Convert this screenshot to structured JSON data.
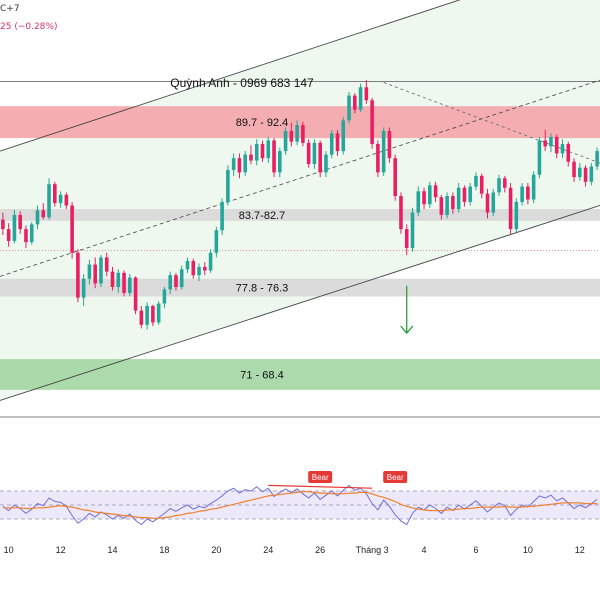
{
  "header": {
    "line1": "C+7",
    "line2": "25 (−0.28%)"
  },
  "colors": {
    "up": "#26a69a",
    "down": "#e91e63",
    "channel_fill": "#eaf6ea",
    "resistance_zone": "#f4a0a6",
    "support_zone_grey": "#d6d6d6",
    "target_zone": "#9ed49e",
    "rsi_line": "#6f6fd8",
    "rsi_ma": "#f08030",
    "bear_label": "#e53935",
    "arrow": "#2e9e3e"
  },
  "chart_data": {
    "type": "candlestick",
    "title": "",
    "annotation": "Quỳnh Anh - 0969 683 147",
    "y_range": [
      65,
      98
    ],
    "x_axis": {
      "ticks": [
        {
          "label": "10",
          "index": 1
        },
        {
          "label": "12",
          "index": 10
        },
        {
          "label": "14",
          "index": 19
        },
        {
          "label": "18",
          "index": 28
        },
        {
          "label": "20",
          "index": 37
        },
        {
          "label": "24",
          "index": 46
        },
        {
          "label": "26",
          "index": 55
        },
        {
          "label": "Tháng 3",
          "index": 64
        },
        {
          "label": "4",
          "index": 73
        },
        {
          "label": "6",
          "index": 82
        },
        {
          "label": "10",
          "index": 91
        },
        {
          "label": "12",
          "index": 100
        }
      ],
      "count": 104
    },
    "zones": [
      {
        "label": "89.7 - 92.4",
        "from": 89.7,
        "to": 92.4,
        "color_key": "resistance_zone"
      },
      {
        "label": "83.7-82.7",
        "from": 82.7,
        "to": 83.7,
        "color_key": "support_zone_grey"
      },
      {
        "label": "77.8 - 76.3",
        "from": 76.3,
        "to": 77.8,
        "color_key": "support_zone_grey"
      },
      {
        "label": "71 - 68.4",
        "from": 68.4,
        "to": 71,
        "color_key": "target_zone"
      }
    ],
    "horizontal_lines": [
      94.5,
      66.1
    ],
    "dotted_price": 80.2,
    "channel": {
      "lower": [
        [
          0,
          67.5
        ],
        [
          104,
          84.0
        ]
      ],
      "upper": [
        [
          0,
          88.6
        ],
        [
          104,
          105.3
        ]
      ],
      "mid": [
        [
          0,
          78.0
        ],
        [
          104,
          94.6
        ]
      ]
    },
    "trend_dashed": [
      [
        66,
        94.4
      ],
      [
        104,
        87.5
      ]
    ],
    "arrow_down": {
      "index": 70,
      "from": 77.2,
      "to": 73.2
    },
    "candles": [
      [
        82.8,
        83.4,
        81.5,
        82.0
      ],
      [
        82.0,
        82.5,
        80.5,
        81.0
      ],
      [
        81.0,
        83.6,
        80.8,
        83.2
      ],
      [
        83.2,
        83.5,
        81.6,
        82.0
      ],
      [
        82.0,
        82.3,
        80.4,
        80.9
      ],
      [
        80.9,
        82.6,
        80.7,
        82.4
      ],
      [
        82.4,
        84.0,
        82.0,
        83.6
      ],
      [
        83.6,
        84.2,
        82.8,
        83.0
      ],
      [
        83.0,
        86.3,
        82.8,
        85.8
      ],
      [
        85.8,
        86.0,
        83.9,
        84.2
      ],
      [
        84.2,
        85.2,
        83.8,
        84.9
      ],
      [
        84.9,
        85.1,
        83.7,
        84.0
      ],
      [
        84.0,
        84.3,
        79.5,
        80.0
      ],
      [
        80.0,
        80.3,
        75.8,
        76.2
      ],
      [
        76.2,
        78.2,
        75.5,
        77.8
      ],
      [
        77.8,
        79.4,
        77.3,
        79.0
      ],
      [
        79.0,
        79.6,
        77.0,
        77.4
      ],
      [
        77.4,
        79.8,
        77.1,
        79.6
      ],
      [
        79.6,
        80.0,
        78.0,
        78.4
      ],
      [
        78.4,
        78.8,
        76.8,
        77.1
      ],
      [
        77.1,
        78.6,
        76.6,
        78.3
      ],
      [
        78.3,
        78.5,
        76.3,
        76.6
      ],
      [
        76.6,
        78.2,
        76.3,
        77.9
      ],
      [
        77.9,
        78.0,
        74.8,
        75.1
      ],
      [
        75.1,
        75.5,
        73.6,
        73.9
      ],
      [
        73.9,
        75.8,
        73.5,
        75.5
      ],
      [
        75.5,
        75.6,
        73.8,
        74.1
      ],
      [
        74.1,
        75.9,
        73.9,
        75.7
      ],
      [
        75.7,
        77.1,
        75.3,
        76.9
      ],
      [
        76.9,
        78.4,
        76.5,
        78.1
      ],
      [
        78.1,
        78.3,
        76.8,
        77.1
      ],
      [
        77.1,
        78.9,
        76.9,
        78.6
      ],
      [
        78.6,
        79.6,
        78.3,
        79.3
      ],
      [
        79.3,
        79.5,
        77.8,
        78.1
      ],
      [
        78.1,
        79.1,
        77.6,
        78.8
      ],
      [
        78.8,
        79.2,
        78.1,
        78.5
      ],
      [
        78.5,
        80.3,
        78.3,
        80.0
      ],
      [
        80.0,
        82.2,
        79.6,
        81.9
      ],
      [
        81.9,
        84.6,
        81.5,
        84.3
      ],
      [
        84.3,
        87.4,
        84.0,
        87.0
      ],
      [
        87.0,
        88.4,
        86.5,
        88.0
      ],
      [
        88.0,
        88.4,
        86.3,
        86.8
      ],
      [
        86.8,
        88.6,
        86.5,
        88.3
      ],
      [
        88.3,
        89.1,
        87.5,
        87.8
      ],
      [
        87.8,
        89.6,
        87.4,
        89.2
      ],
      [
        89.2,
        89.5,
        87.7,
        88.0
      ],
      [
        88.0,
        89.8,
        87.6,
        89.5
      ],
      [
        89.5,
        89.7,
        86.4,
        86.8
      ],
      [
        86.8,
        88.9,
        86.4,
        88.6
      ],
      [
        88.6,
        90.6,
        88.3,
        90.3
      ],
      [
        90.3,
        91.0,
        89.0,
        89.4
      ],
      [
        89.4,
        91.2,
        89.1,
        90.8
      ],
      [
        90.8,
        91.1,
        89.0,
        89.3
      ],
      [
        89.3,
        89.6,
        87.2,
        87.5
      ],
      [
        87.5,
        89.6,
        87.1,
        89.3
      ],
      [
        89.3,
        89.5,
        86.4,
        86.8
      ],
      [
        86.8,
        88.6,
        86.4,
        88.3
      ],
      [
        88.3,
        90.4,
        88.0,
        90.1
      ],
      [
        90.1,
        90.4,
        88.2,
        88.6
      ],
      [
        88.6,
        91.5,
        88.3,
        91.2
      ],
      [
        91.2,
        93.6,
        90.9,
        93.3
      ],
      [
        93.3,
        93.5,
        91.8,
        92.1
      ],
      [
        92.1,
        94.3,
        91.9,
        94.0
      ],
      [
        94.0,
        94.6,
        92.6,
        92.9
      ],
      [
        92.9,
        93.1,
        88.8,
        89.2
      ],
      [
        89.2,
        89.5,
        86.4,
        86.8
      ],
      [
        86.8,
        90.6,
        86.5,
        90.3
      ],
      [
        90.3,
        90.6,
        87.6,
        88.0
      ],
      [
        88.0,
        88.3,
        84.4,
        84.8
      ],
      [
        84.8,
        85.1,
        81.6,
        82.0
      ],
      [
        82.0,
        82.4,
        79.8,
        80.4
      ],
      [
        80.4,
        83.8,
        80.1,
        83.4
      ],
      [
        83.4,
        85.6,
        83.1,
        85.2
      ],
      [
        85.2,
        85.5,
        83.7,
        84.1
      ],
      [
        84.1,
        86.0,
        83.8,
        85.7
      ],
      [
        85.7,
        86.0,
        84.3,
        84.7
      ],
      [
        84.7,
        84.9,
        82.8,
        83.2
      ],
      [
        83.2,
        85.1,
        82.9,
        84.8
      ],
      [
        84.8,
        85.1,
        83.3,
        83.7
      ],
      [
        83.7,
        85.9,
        83.4,
        85.5
      ],
      [
        85.5,
        85.7,
        83.9,
        84.3
      ],
      [
        84.3,
        85.9,
        84.0,
        85.6
      ],
      [
        85.6,
        86.8,
        85.3,
        86.5
      ],
      [
        86.5,
        86.7,
        84.6,
        85.0
      ],
      [
        85.0,
        85.4,
        82.9,
        83.4
      ],
      [
        83.4,
        85.4,
        83.1,
        85.1
      ],
      [
        85.1,
        86.6,
        84.8,
        86.3
      ],
      [
        86.3,
        86.5,
        85.1,
        85.5
      ],
      [
        85.5,
        85.9,
        81.6,
        82.0
      ],
      [
        82.0,
        84.6,
        81.7,
        84.3
      ],
      [
        84.3,
        85.9,
        84.0,
        85.6
      ],
      [
        85.6,
        85.9,
        84.1,
        84.5
      ],
      [
        84.5,
        86.9,
        84.2,
        86.6
      ],
      [
        86.6,
        89.8,
        86.3,
        89.5
      ],
      [
        89.5,
        90.4,
        88.6,
        89.0
      ],
      [
        89.0,
        90.1,
        88.5,
        89.8
      ],
      [
        89.8,
        90.0,
        88.0,
        88.4
      ],
      [
        88.4,
        89.6,
        88.0,
        89.2
      ],
      [
        89.2,
        89.4,
        87.3,
        87.7
      ],
      [
        87.7,
        88.0,
        86.0,
        86.4
      ],
      [
        86.4,
        87.6,
        86.1,
        87.2
      ],
      [
        87.2,
        87.4,
        85.6,
        86.0
      ],
      [
        86.0,
        87.6,
        85.7,
        87.3
      ],
      [
        87.3,
        88.9,
        87.0,
        88.6
      ]
    ],
    "rsi": {
      "y_range": [
        0,
        100
      ],
      "levels": [
        70,
        50,
        30
      ],
      "bear_labels": [
        {
          "label": "Bear",
          "index": 55,
          "value": 90
        },
        {
          "label": "Bear",
          "index": 68,
          "value": 90
        }
      ],
      "divergence": [
        [
          46,
          78
        ],
        [
          64,
          74
        ]
      ],
      "values": [
        48,
        42,
        50,
        45,
        38,
        44,
        52,
        49,
        60,
        55,
        54,
        48,
        35,
        24,
        30,
        38,
        33,
        40,
        36,
        30,
        35,
        31,
        37,
        28,
        22,
        30,
        26,
        32,
        38,
        45,
        41,
        46,
        50,
        44,
        48,
        46,
        52,
        57,
        63,
        70,
        74,
        67,
        72,
        70,
        76,
        69,
        74,
        62,
        68,
        73,
        68,
        73,
        66,
        60,
        67,
        58,
        64,
        70,
        63,
        71,
        78,
        71,
        74,
        66,
        52,
        43,
        57,
        48,
        36,
        27,
        22,
        38,
        47,
        43,
        50,
        45,
        38,
        47,
        42,
        50,
        44,
        50,
        56,
        48,
        40,
        47,
        53,
        49,
        35,
        44,
        50,
        47,
        55,
        63,
        60,
        64,
        56,
        60,
        53,
        45,
        50,
        46,
        52,
        58
      ],
      "ma_values": [
        46,
        46,
        46,
        46,
        45,
        45,
        46,
        46,
        47,
        48,
        49,
        48,
        47,
        45,
        43,
        42,
        40,
        39,
        38,
        37,
        36,
        35,
        34,
        33,
        32,
        32,
        31,
        31,
        32,
        33,
        35,
        36,
        38,
        39,
        41,
        42,
        44,
        45,
        47,
        49,
        51,
        53,
        55,
        57,
        59,
        61,
        63,
        64,
        65,
        66,
        67,
        68,
        69,
        69,
        68,
        67,
        67,
        66,
        66,
        66,
        67,
        67,
        68,
        68,
        66,
        63,
        61,
        58,
        55,
        51,
        48,
        46,
        44,
        43,
        42,
        42,
        42,
        43,
        43,
        44,
        45,
        45,
        46,
        47,
        47,
        47,
        47,
        48,
        47,
        47,
        47,
        48,
        48,
        49,
        50,
        51,
        52,
        53,
        53,
        53,
        53,
        52,
        52,
        52
      ]
    }
  }
}
